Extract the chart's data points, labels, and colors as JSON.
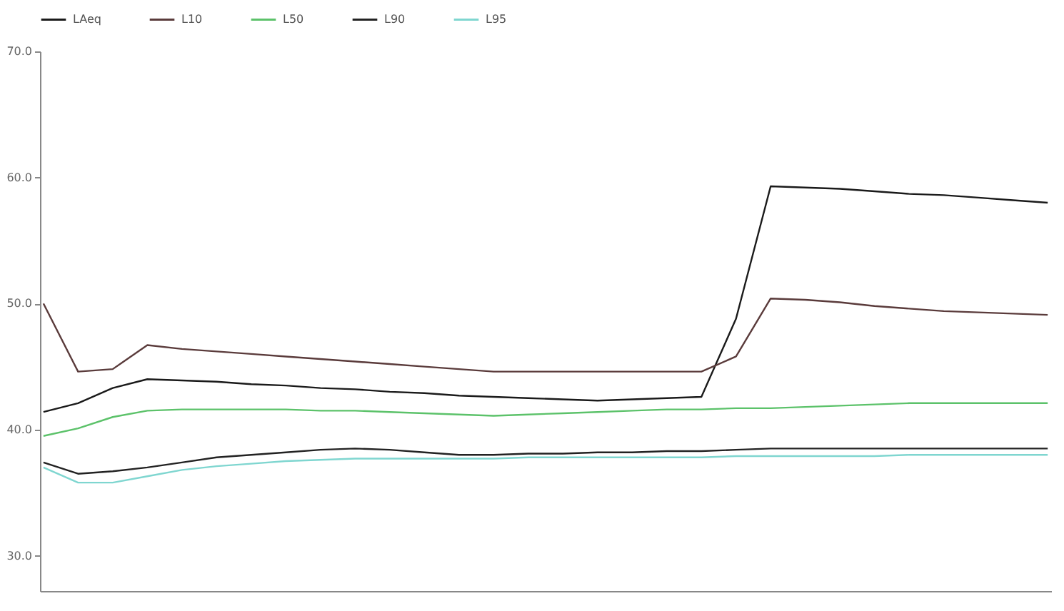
{
  "chart_data": {
    "type": "line",
    "legend": "top",
    "marker": "none",
    "line_style": "solid",
    "categories": [
      null,
      null,
      null,
      null,
      null,
      null,
      null,
      null,
      null,
      null,
      null,
      null,
      null,
      null,
      null,
      null,
      null,
      null,
      null,
      null,
      null,
      null,
      null,
      null,
      null,
      null,
      null,
      null,
      null,
      null
    ],
    "ylim": [
      27.2,
      70
    ],
    "yticks": [
      {
        "value": 30,
        "label": "30.0"
      },
      {
        "value": 40,
        "label": "40.0"
      },
      {
        "value": 50,
        "label": "50.0"
      },
      {
        "value": 60,
        "label": "60.0"
      },
      {
        "value": 70,
        "label": "70.0"
      }
    ],
    "series": [
      {
        "name": "LAeq",
        "color": "#1a1a1a",
        "values": [
          41.4,
          42.1,
          43.3,
          44.0,
          43.9,
          43.8,
          43.6,
          43.5,
          43.3,
          43.2,
          43.0,
          42.9,
          42.7,
          42.6,
          42.5,
          42.4,
          42.3,
          42.4,
          42.5,
          42.6,
          48.8,
          59.3,
          59.2,
          59.1,
          58.9,
          58.7,
          58.6,
          58.4,
          58.2,
          58.0
        ]
      },
      {
        "name": "L10",
        "color": "#5a3b3b",
        "values": [
          50,
          44.6,
          44.8,
          46.7,
          46.4,
          46.2,
          46.0,
          45.8,
          45.6,
          45.4,
          45.2,
          45.0,
          44.8,
          44.6,
          44.6,
          44.6,
          44.6,
          44.6,
          44.6,
          44.6,
          45.8,
          50.4,
          50.3,
          50.1,
          49.8,
          49.6,
          49.4,
          49.3,
          49.2,
          49.1
        ]
      },
      {
        "name": "L50",
        "color": "#5cc26a",
        "values": [
          39.5,
          40.1,
          41.0,
          41.5,
          41.6,
          41.6,
          41.6,
          41.6,
          41.5,
          41.5,
          41.4,
          41.3,
          41.2,
          41.1,
          41.2,
          41.3,
          41.4,
          41.5,
          41.6,
          41.6,
          41.7,
          41.7,
          41.8,
          41.9,
          42.0,
          42.1,
          42.1,
          42.1,
          42.1,
          42.1
        ]
      },
      {
        "name": "L90",
        "color": "#222222",
        "values": [
          37.4,
          36.5,
          36.7,
          37.0,
          37.4,
          37.8,
          38.0,
          38.2,
          38.4,
          38.5,
          38.4,
          38.2,
          38.0,
          38.0,
          38.1,
          38.1,
          38.2,
          38.2,
          38.3,
          38.3,
          38.4,
          38.5,
          38.5,
          38.5,
          38.5,
          38.5,
          38.5,
          38.5,
          38.5,
          38.5
        ]
      },
      {
        "name": "L95",
        "color": "#7fd6d0",
        "values": [
          37.0,
          35.8,
          35.8,
          36.3,
          36.8,
          37.1,
          37.3,
          37.5,
          37.6,
          37.7,
          37.7,
          37.7,
          37.7,
          37.7,
          37.8,
          37.8,
          37.8,
          37.8,
          37.8,
          37.8,
          37.9,
          37.9,
          37.9,
          37.9,
          37.9,
          38.0,
          38.0,
          38.0,
          38.0,
          38.0
        ]
      }
    ]
  }
}
